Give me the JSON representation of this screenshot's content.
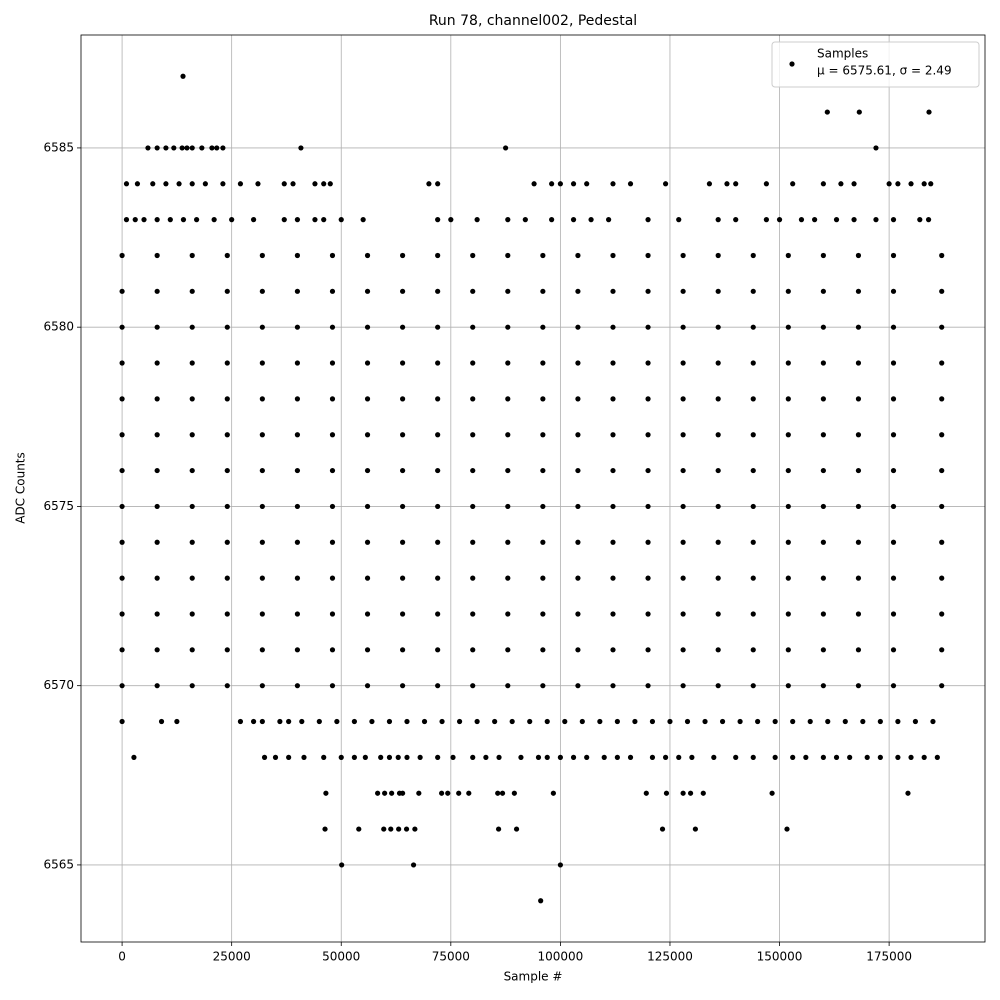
{
  "chart_data": {
    "type": "scatter",
    "title": "Run 78, channel002, Pedestal",
    "x_label": "Sample #",
    "y_label": "ADC Counts",
    "legend_position": "upper right",
    "legend_detail": "μ = 6575.61, σ = 2.49",
    "grid": true,
    "xlim": [
      -9375,
      196875
    ],
    "ylim": [
      6562.85,
      6588.15
    ],
    "xticks": [
      0,
      25000,
      50000,
      75000,
      100000,
      125000,
      150000,
      175000
    ],
    "yticks": [
      6565,
      6570,
      6575,
      6580,
      6585
    ],
    "series": [
      {
        "name": "Samples",
        "color": "#000000",
        "x": [
          13900,
          160900,
          168200,
          184100,
          5900,
          8000,
          10000,
          11800,
          13700,
          14800,
          16000,
          18200,
          20500,
          21600,
          23000,
          40800,
          87500,
          172000,
          1000,
          3500,
          7000,
          10000,
          13000,
          16000,
          19000,
          23000,
          27000,
          31000,
          37000,
          39000,
          44000,
          46000,
          47500,
          70000,
          72000,
          94000,
          98000,
          100000,
          103000,
          106000,
          112000,
          116000,
          124000,
          134000,
          138000,
          140000,
          147000,
          153000,
          160000,
          164000,
          167000,
          175000,
          177000,
          180000,
          183000,
          184500,
          1000,
          3000,
          5000,
          8000,
          11000,
          14000,
          17000,
          21000,
          25000,
          30000,
          37000,
          40000,
          44000,
          46000,
          50000,
          55000,
          72000,
          75000,
          81000,
          88000,
          92000,
          98000,
          103000,
          107000,
          111000,
          120000,
          127000,
          136000,
          140000,
          147000,
          150000,
          155000,
          158000,
          163000,
          167000,
          172000,
          176000,
          182000,
          184000,
          0,
          8000,
          16000,
          24000,
          32000,
          40000,
          48000,
          56000,
          64000,
          72000,
          80000,
          88000,
          96000,
          104000,
          112000,
          120000,
          128000,
          136000,
          144000,
          152000,
          160000,
          168000,
          176000,
          187000,
          0,
          8000,
          16000,
          24000,
          32000,
          40000,
          48000,
          56000,
          64000,
          72000,
          80000,
          88000,
          96000,
          104000,
          112000,
          120000,
          128000,
          136000,
          144000,
          152000,
          160000,
          168000,
          176000,
          187000,
          0,
          8000,
          16000,
          24000,
          32000,
          40000,
          48000,
          56000,
          64000,
          72000,
          80000,
          88000,
          96000,
          104000,
          112000,
          120000,
          128000,
          136000,
          144000,
          152000,
          160000,
          168000,
          176000,
          187000,
          0,
          8000,
          16000,
          24000,
          32000,
          40000,
          48000,
          56000,
          64000,
          72000,
          80000,
          88000,
          96000,
          104000,
          112000,
          120000,
          128000,
          136000,
          144000,
          152000,
          160000,
          168000,
          176000,
          187000,
          0,
          8000,
          16000,
          24000,
          32000,
          40000,
          48000,
          56000,
          64000,
          72000,
          80000,
          88000,
          96000,
          104000,
          112000,
          120000,
          128000,
          136000,
          144000,
          152000,
          160000,
          168000,
          176000,
          187000,
          0,
          8000,
          16000,
          24000,
          32000,
          40000,
          48000,
          56000,
          64000,
          72000,
          80000,
          88000,
          96000,
          104000,
          112000,
          120000,
          128000,
          136000,
          144000,
          152000,
          160000,
          168000,
          176000,
          187000,
          0,
          8000,
          16000,
          24000,
          32000,
          40000,
          48000,
          56000,
          64000,
          72000,
          80000,
          88000,
          96000,
          104000,
          112000,
          120000,
          128000,
          136000,
          144000,
          152000,
          160000,
          168000,
          176000,
          187000,
          0,
          8000,
          16000,
          24000,
          32000,
          40000,
          48000,
          56000,
          64000,
          72000,
          80000,
          88000,
          96000,
          104000,
          112000,
          120000,
          128000,
          136000,
          144000,
          152000,
          160000,
          168000,
          176000,
          187000,
          0,
          8000,
          16000,
          24000,
          32000,
          40000,
          48000,
          56000,
          64000,
          72000,
          80000,
          88000,
          96000,
          104000,
          112000,
          120000,
          128000,
          136000,
          144000,
          152000,
          160000,
          168000,
          176000,
          187000,
          0,
          8000,
          16000,
          24000,
          32000,
          40000,
          48000,
          56000,
          64000,
          72000,
          80000,
          88000,
          96000,
          104000,
          112000,
          120000,
          128000,
          136000,
          144000,
          152000,
          160000,
          168000,
          176000,
          187000,
          0,
          8000,
          16000,
          24000,
          32000,
          40000,
          48000,
          56000,
          64000,
          72000,
          80000,
          88000,
          96000,
          104000,
          112000,
          120000,
          128000,
          136000,
          144000,
          152000,
          160000,
          168000,
          176000,
          187000,
          0,
          8000,
          16000,
          24000,
          32000,
          40000,
          48000,
          56000,
          64000,
          72000,
          80000,
          88000,
          96000,
          104000,
          112000,
          120000,
          128000,
          136000,
          144000,
          152000,
          160000,
          168000,
          176000,
          187000,
          0,
          8000,
          16000,
          24000,
          32000,
          40000,
          48000,
          56000,
          64000,
          72000,
          80000,
          88000,
          96000,
          104000,
          112000,
          120000,
          128000,
          136000,
          144000,
          152000,
          160000,
          168000,
          176000,
          187000,
          0,
          9000,
          12500,
          27000,
          30000,
          32000,
          36000,
          38000,
          41000,
          45000,
          49000,
          53000,
          57000,
          61000,
          65000,
          69000,
          73000,
          77000,
          81000,
          85000,
          89000,
          93000,
          97000,
          101000,
          105000,
          109000,
          113000,
          117000,
          121000,
          125000,
          129000,
          133000,
          137000,
          141000,
          145000,
          149000,
          153000,
          157000,
          161000,
          165000,
          169000,
          173000,
          177000,
          181000,
          185000,
          2700,
          32500,
          35000,
          38000,
          41500,
          46000,
          50000,
          53000,
          55500,
          59000,
          61000,
          63000,
          65000,
          68000,
          72000,
          75500,
          80000,
          83000,
          86000,
          91000,
          95000,
          97000,
          100000,
          103000,
          106000,
          110000,
          113000,
          116000,
          121000,
          124000,
          127000,
          130000,
          135000,
          140000,
          144000,
          149000,
          153000,
          156000,
          160000,
          163000,
          166000,
          170000,
          173000,
          177000,
          180000,
          183000,
          186000,
          46500,
          58300,
          59900,
          61500,
          63300,
          64000,
          67700,
          72900,
          74300,
          76800,
          79100,
          85700,
          86800,
          89500,
          98400,
          119600,
          124200,
          128000,
          129700,
          132600,
          148300,
          179300,
          46300,
          54000,
          59700,
          61300,
          63100,
          64900,
          66800,
          85900,
          90000,
          123300,
          130800,
          151700,
          50100,
          66500,
          100000,
          95500
        ],
        "y": [
          6587,
          6586,
          6586,
          6586,
          6585,
          6585,
          6585,
          6585,
          6585,
          6585,
          6585,
          6585,
          6585,
          6585,
          6585,
          6585,
          6585,
          6585,
          6584,
          6584,
          6584,
          6584,
          6584,
          6584,
          6584,
          6584,
          6584,
          6584,
          6584,
          6584,
          6584,
          6584,
          6584,
          6584,
          6584,
          6584,
          6584,
          6584,
          6584,
          6584,
          6584,
          6584,
          6584,
          6584,
          6584,
          6584,
          6584,
          6584,
          6584,
          6584,
          6584,
          6584,
          6584,
          6584,
          6584,
          6584,
          6583,
          6583,
          6583,
          6583,
          6583,
          6583,
          6583,
          6583,
          6583,
          6583,
          6583,
          6583,
          6583,
          6583,
          6583,
          6583,
          6583,
          6583,
          6583,
          6583,
          6583,
          6583,
          6583,
          6583,
          6583,
          6583,
          6583,
          6583,
          6583,
          6583,
          6583,
          6583,
          6583,
          6583,
          6583,
          6583,
          6583,
          6583,
          6583,
          6582,
          6582,
          6582,
          6582,
          6582,
          6582,
          6582,
          6582,
          6582,
          6582,
          6582,
          6582,
          6582,
          6582,
          6582,
          6582,
          6582,
          6582,
          6582,
          6582,
          6582,
          6582,
          6582,
          6582,
          6581,
          6581,
          6581,
          6581,
          6581,
          6581,
          6581,
          6581,
          6581,
          6581,
          6581,
          6581,
          6581,
          6581,
          6581,
          6581,
          6581,
          6581,
          6581,
          6581,
          6581,
          6581,
          6581,
          6581,
          6580,
          6580,
          6580,
          6580,
          6580,
          6580,
          6580,
          6580,
          6580,
          6580,
          6580,
          6580,
          6580,
          6580,
          6580,
          6580,
          6580,
          6580,
          6580,
          6580,
          6580,
          6580,
          6580,
          6580,
          6579,
          6579,
          6579,
          6579,
          6579,
          6579,
          6579,
          6579,
          6579,
          6579,
          6579,
          6579,
          6579,
          6579,
          6579,
          6579,
          6579,
          6579,
          6579,
          6579,
          6579,
          6579,
          6579,
          6579,
          6578,
          6578,
          6578,
          6578,
          6578,
          6578,
          6578,
          6578,
          6578,
          6578,
          6578,
          6578,
          6578,
          6578,
          6578,
          6578,
          6578,
          6578,
          6578,
          6578,
          6578,
          6578,
          6578,
          6578,
          6577,
          6577,
          6577,
          6577,
          6577,
          6577,
          6577,
          6577,
          6577,
          6577,
          6577,
          6577,
          6577,
          6577,
          6577,
          6577,
          6577,
          6577,
          6577,
          6577,
          6577,
          6577,
          6577,
          6577,
          6576,
          6576,
          6576,
          6576,
          6576,
          6576,
          6576,
          6576,
          6576,
          6576,
          6576,
          6576,
          6576,
          6576,
          6576,
          6576,
          6576,
          6576,
          6576,
          6576,
          6576,
          6576,
          6576,
          6576,
          6575,
          6575,
          6575,
          6575,
          6575,
          6575,
          6575,
          6575,
          6575,
          6575,
          6575,
          6575,
          6575,
          6575,
          6575,
          6575,
          6575,
          6575,
          6575,
          6575,
          6575,
          6575,
          6575,
          6575,
          6574,
          6574,
          6574,
          6574,
          6574,
          6574,
          6574,
          6574,
          6574,
          6574,
          6574,
          6574,
          6574,
          6574,
          6574,
          6574,
          6574,
          6574,
          6574,
          6574,
          6574,
          6574,
          6574,
          6574,
          6573,
          6573,
          6573,
          6573,
          6573,
          6573,
          6573,
          6573,
          6573,
          6573,
          6573,
          6573,
          6573,
          6573,
          6573,
          6573,
          6573,
          6573,
          6573,
          6573,
          6573,
          6573,
          6573,
          6573,
          6572,
          6572,
          6572,
          6572,
          6572,
          6572,
          6572,
          6572,
          6572,
          6572,
          6572,
          6572,
          6572,
          6572,
          6572,
          6572,
          6572,
          6572,
          6572,
          6572,
          6572,
          6572,
          6572,
          6572,
          6571,
          6571,
          6571,
          6571,
          6571,
          6571,
          6571,
          6571,
          6571,
          6571,
          6571,
          6571,
          6571,
          6571,
          6571,
          6571,
          6571,
          6571,
          6571,
          6571,
          6571,
          6571,
          6571,
          6571,
          6570,
          6570,
          6570,
          6570,
          6570,
          6570,
          6570,
          6570,
          6570,
          6570,
          6570,
          6570,
          6570,
          6570,
          6570,
          6570,
          6570,
          6570,
          6570,
          6570,
          6570,
          6570,
          6570,
          6570,
          6569,
          6569,
          6569,
          6569,
          6569,
          6569,
          6569,
          6569,
          6569,
          6569,
          6569,
          6569,
          6569,
          6569,
          6569,
          6569,
          6569,
          6569,
          6569,
          6569,
          6569,
          6569,
          6569,
          6569,
          6569,
          6569,
          6569,
          6569,
          6569,
          6569,
          6569,
          6569,
          6569,
          6569,
          6569,
          6569,
          6569,
          6569,
          6569,
          6569,
          6569,
          6569,
          6569,
          6569,
          6569,
          6568,
          6568,
          6568,
          6568,
          6568,
          6568,
          6568,
          6568,
          6568,
          6568,
          6568,
          6568,
          6568,
          6568,
          6568,
          6568,
          6568,
          6568,
          6568,
          6568,
          6568,
          6568,
          6568,
          6568,
          6568,
          6568,
          6568,
          6568,
          6568,
          6568,
          6568,
          6568,
          6568,
          6568,
          6568,
          6568,
          6568,
          6568,
          6568,
          6568,
          6568,
          6568,
          6568,
          6568,
          6568,
          6568,
          6568,
          6567,
          6567,
          6567,
          6567,
          6567,
          6567,
          6567,
          6567,
          6567,
          6567,
          6567,
          6567,
          6567,
          6567,
          6567,
          6567,
          6567,
          6567,
          6567,
          6567,
          6567,
          6567,
          6566,
          6566,
          6566,
          6566,
          6566,
          6566,
          6566,
          6566,
          6566,
          6566,
          6566,
          6566,
          6565,
          6565,
          6565,
          6564
        ]
      }
    ]
  }
}
